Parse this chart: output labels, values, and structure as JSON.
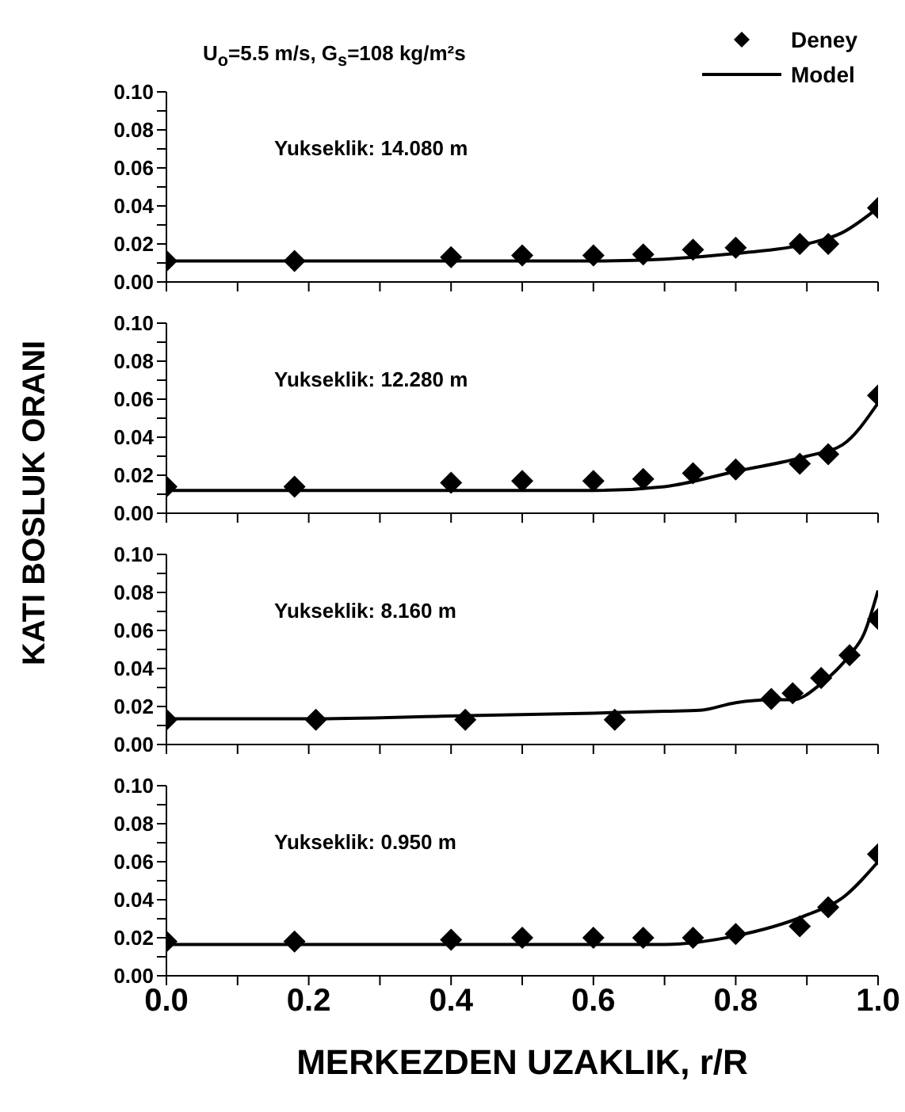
{
  "chart_data": [
    {
      "type": "scatter",
      "title": "U$_{o}$=5.5 m/s, G$_{s}$=108 kg/m²s",
      "ylabel": "KATI BOSLUK ORANI",
      "annotations": [
        "Yukseklik: 14.080 m"
      ],
      "legend": "top right",
      "tick_labels": "y",
      "marker": "diamond",
      "xlim": [
        0,
        1
      ],
      "xticks": [
        {
          "value": 0,
          "label": null
        },
        {
          "value": 0.1,
          "label": null
        },
        {
          "value": 0.2,
          "label": null
        },
        {
          "value": 0.3,
          "label": null
        },
        {
          "value": 0.4,
          "label": null
        },
        {
          "value": 0.5,
          "label": null
        },
        {
          "value": 0.6,
          "label": null
        },
        {
          "value": 0.7,
          "label": null
        },
        {
          "value": 0.8,
          "label": null
        },
        {
          "value": 0.9,
          "label": null
        },
        {
          "value": 1,
          "label": null
        }
      ],
      "ylim": [
        0,
        0.1
      ],
      "yticks": [
        {
          "value": 0,
          "label": "0.00"
        },
        {
          "value": 0.01,
          "label": null
        },
        {
          "value": 0.02,
          "label": "0.02"
        },
        {
          "value": 0.03,
          "label": null
        },
        {
          "value": 0.04,
          "label": "0.04"
        },
        {
          "value": 0.05,
          "label": null
        },
        {
          "value": 0.06,
          "label": "0.06"
        },
        {
          "value": 0.07,
          "label": null
        },
        {
          "value": 0.08,
          "label": "0.08"
        },
        {
          "value": 0.09,
          "label": null
        },
        {
          "value": 0.1,
          "label": "0.10"
        }
      ],
      "series": [
        {
          "name": "Deney",
          "color": "#000000",
          "x": [
            0,
            0.18,
            0.4,
            0.5,
            0.6,
            0.67,
            0.74,
            0.8,
            0.89,
            0.93,
            1.0
          ],
          "values": [
            0.011,
            0.011,
            0.013,
            0.014,
            0.014,
            0.0145,
            0.017,
            0.018,
            0.02,
            0.02,
            0.039
          ]
        },
        {
          "name": "Model",
          "type": "line",
          "marker": "none",
          "color": "#000000",
          "x": [
            0,
            0.2,
            0.4,
            0.6,
            0.7,
            0.8,
            0.9,
            0.95,
            1.0
          ],
          "values": [
            0.011,
            0.011,
            0.011,
            0.011,
            0.012,
            0.015,
            0.02,
            0.026,
            0.039
          ]
        }
      ]
    },
    {
      "type": "scatter",
      "annotations": [
        "Yukseklik: 12.280 m"
      ],
      "tick_labels": "y",
      "marker": "diamond",
      "xlim": [
        0,
        1
      ],
      "xticks": [
        {
          "value": 0,
          "label": null
        },
        {
          "value": 0.1,
          "label": null
        },
        {
          "value": 0.2,
          "label": null
        },
        {
          "value": 0.3,
          "label": null
        },
        {
          "value": 0.4,
          "label": null
        },
        {
          "value": 0.5,
          "label": null
        },
        {
          "value": 0.6,
          "label": null
        },
        {
          "value": 0.7,
          "label": null
        },
        {
          "value": 0.8,
          "label": null
        },
        {
          "value": 0.9,
          "label": null
        },
        {
          "value": 1,
          "label": null
        }
      ],
      "ylim": [
        0,
        0.1
      ],
      "yticks": [
        {
          "value": 0,
          "label": "0.00"
        },
        {
          "value": 0.01,
          "label": null
        },
        {
          "value": 0.02,
          "label": "0.02"
        },
        {
          "value": 0.03,
          "label": null
        },
        {
          "value": 0.04,
          "label": "0.04"
        },
        {
          "value": 0.05,
          "label": null
        },
        {
          "value": 0.06,
          "label": "0.06"
        },
        {
          "value": 0.07,
          "label": null
        },
        {
          "value": 0.08,
          "label": "0.08"
        },
        {
          "value": 0.09,
          "label": null
        },
        {
          "value": 0.1,
          "label": "0.10"
        }
      ],
      "series": [
        {
          "color": "#000000",
          "x": [
            0,
            0.18,
            0.4,
            0.5,
            0.6,
            0.67,
            0.74,
            0.8,
            0.89,
            0.93,
            1.0
          ],
          "values": [
            0.014,
            0.014,
            0.016,
            0.017,
            0.017,
            0.018,
            0.021,
            0.023,
            0.026,
            0.031,
            0.062
          ]
        },
        {
          "type": "line",
          "marker": "none",
          "color": "#000000",
          "x": [
            0,
            0.2,
            0.4,
            0.6,
            0.7,
            0.8,
            0.9,
            0.95,
            1.0
          ],
          "values": [
            0.012,
            0.012,
            0.012,
            0.012,
            0.014,
            0.022,
            0.03,
            0.036,
            0.058
          ]
        }
      ]
    },
    {
      "type": "scatter",
      "annotations": [
        "Yukseklik: 8.160 m"
      ],
      "tick_labels": "y",
      "marker": "diamond",
      "xlim": [
        0,
        1
      ],
      "xticks": [
        {
          "value": 0,
          "label": null
        },
        {
          "value": 0.1,
          "label": null
        },
        {
          "value": 0.2,
          "label": null
        },
        {
          "value": 0.3,
          "label": null
        },
        {
          "value": 0.4,
          "label": null
        },
        {
          "value": 0.5,
          "label": null
        },
        {
          "value": 0.6,
          "label": null
        },
        {
          "value": 0.7,
          "label": null
        },
        {
          "value": 0.8,
          "label": null
        },
        {
          "value": 0.9,
          "label": null
        },
        {
          "value": 1,
          "label": null
        }
      ],
      "ylim": [
        0,
        0.1
      ],
      "yticks": [
        {
          "value": 0,
          "label": "0.00"
        },
        {
          "value": 0.01,
          "label": null
        },
        {
          "value": 0.02,
          "label": "0.02"
        },
        {
          "value": 0.03,
          "label": null
        },
        {
          "value": 0.04,
          "label": "0.04"
        },
        {
          "value": 0.05,
          "label": null
        },
        {
          "value": 0.06,
          "label": "0.06"
        },
        {
          "value": 0.07,
          "label": null
        },
        {
          "value": 0.08,
          "label": "0.08"
        },
        {
          "value": 0.09,
          "label": null
        },
        {
          "value": 0.1,
          "label": "0.10"
        }
      ],
      "series": [
        {
          "color": "#000000",
          "x": [
            0,
            0.21,
            0.42,
            0.63,
            0.85,
            0.88,
            0.92,
            0.96,
            1.0
          ],
          "values": [
            0.013,
            0.013,
            0.013,
            0.013,
            0.024,
            0.027,
            0.035,
            0.047,
            0.066
          ]
        },
        {
          "type": "line",
          "marker": "none",
          "color": "#000000",
          "x": [
            0,
            0.2,
            0.4,
            0.6,
            0.7,
            0.75,
            0.8,
            0.85,
            0.88,
            0.92,
            0.96,
            0.98,
            1.0
          ],
          "values": [
            0.0135,
            0.0135,
            0.015,
            0.0165,
            0.0175,
            0.018,
            0.022,
            0.0235,
            0.0235,
            0.032,
            0.047,
            0.058,
            0.081
          ]
        }
      ]
    },
    {
      "type": "scatter",
      "xlabel": "MERKEZDEN UZAKLIK, r/R",
      "annotations": [
        "Yukseklik: 0.950 m"
      ],
      "marker": "diamond",
      "xlim": [
        0,
        1
      ],
      "xticks": [
        {
          "value": 0,
          "label": "0.0"
        },
        {
          "value": 0.1,
          "label": null
        },
        {
          "value": 0.2,
          "label": "0.2"
        },
        {
          "value": 0.3,
          "label": null
        },
        {
          "value": 0.4,
          "label": "0.4"
        },
        {
          "value": 0.5,
          "label": null
        },
        {
          "value": 0.6,
          "label": "0.6"
        },
        {
          "value": 0.7,
          "label": null
        },
        {
          "value": 0.8,
          "label": "0.8"
        },
        {
          "value": 0.9,
          "label": null
        },
        {
          "value": 1,
          "label": "1.0"
        }
      ],
      "ylim": [
        0,
        0.1
      ],
      "yticks": [
        {
          "value": 0,
          "label": "0.00"
        },
        {
          "value": 0.01,
          "label": null
        },
        {
          "value": 0.02,
          "label": "0.02"
        },
        {
          "value": 0.03,
          "label": null
        },
        {
          "value": 0.04,
          "label": "0.04"
        },
        {
          "value": 0.05,
          "label": null
        },
        {
          "value": 0.06,
          "label": "0.06"
        },
        {
          "value": 0.07,
          "label": null
        },
        {
          "value": 0.08,
          "label": "0.08"
        },
        {
          "value": 0.09,
          "label": null
        },
        {
          "value": 0.1,
          "label": "0.10"
        }
      ],
      "series": [
        {
          "color": "#000000",
          "x": [
            0,
            0.18,
            0.4,
            0.5,
            0.6,
            0.67,
            0.74,
            0.8,
            0.89,
            0.93,
            1.0
          ],
          "values": [
            0.018,
            0.018,
            0.019,
            0.02,
            0.02,
            0.02,
            0.02,
            0.022,
            0.026,
            0.036,
            0.064
          ]
        },
        {
          "type": "line",
          "marker": "none",
          "color": "#000000",
          "x": [
            0,
            0.2,
            0.4,
            0.6,
            0.7,
            0.8,
            0.9,
            0.95,
            1.0
          ],
          "values": [
            0.0165,
            0.0165,
            0.0165,
            0.0165,
            0.0165,
            0.021,
            0.032,
            0.041,
            0.06
          ]
        }
      ]
    }
  ]
}
